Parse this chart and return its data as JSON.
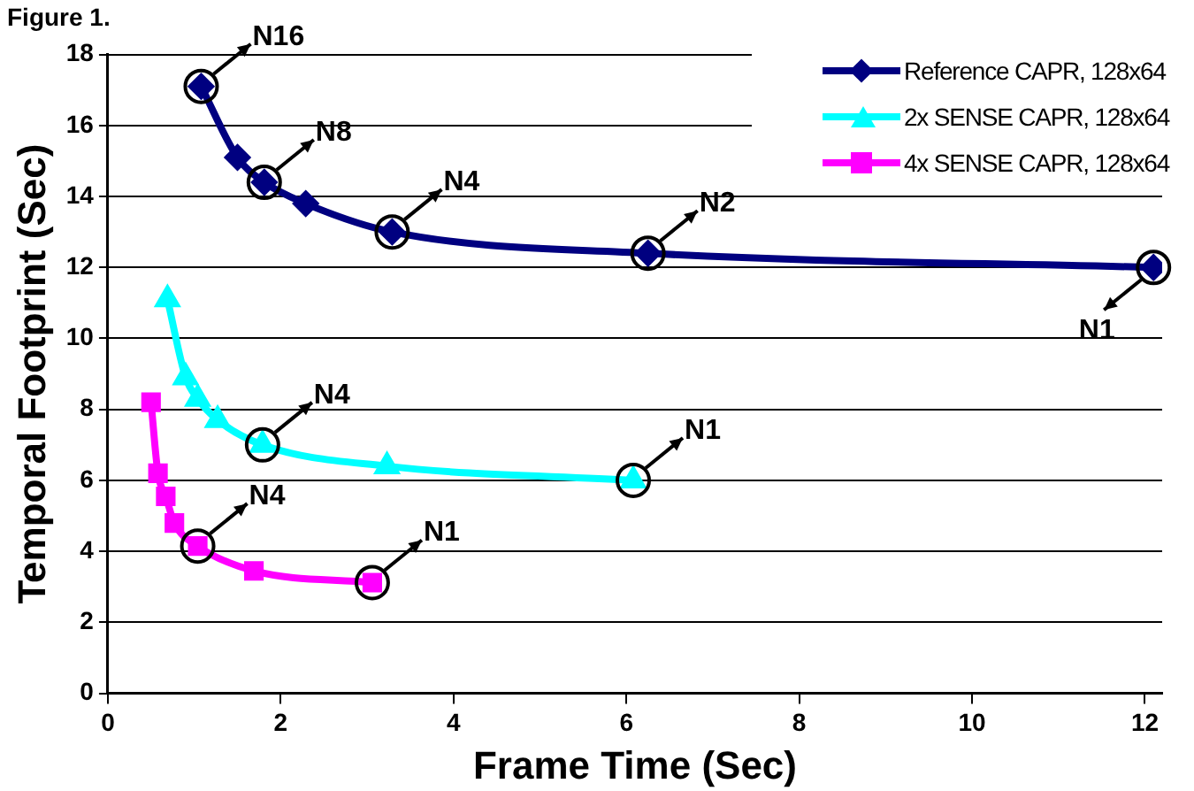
{
  "chart_data": {
    "type": "line",
    "title": "Figure 1.",
    "xlabel": "Frame Time (Sec)",
    "ylabel": "Temporal Footprint (Sec)",
    "xlim": [
      0,
      12.2
    ],
    "xticks": [
      0,
      2,
      4,
      6,
      8,
      10,
      12
    ],
    "ylim": [
      0,
      18
    ],
    "yticks": [
      0,
      2,
      4,
      6,
      8,
      10,
      12,
      14,
      16,
      18
    ],
    "grid": "y",
    "legend": "top right",
    "series": [
      {
        "name": "Reference CAPR, 128x64",
        "color": "#000080",
        "marker": "diamond",
        "x": [
          1.08,
          1.5,
          1.81,
          2.29,
          3.29,
          6.25,
          12.1
        ],
        "values": [
          17.1,
          15.1,
          14.4,
          13.8,
          13.0,
          12.4,
          12.0
        ]
      },
      {
        "name": "2x SENSE CAPR, 128x64",
        "color": "#00ffff",
        "marker": "triangle",
        "x": [
          0.69,
          0.9,
          1.04,
          1.27,
          1.79,
          3.23,
          6.08
        ],
        "values": [
          11.1,
          8.9,
          8.3,
          7.7,
          7.0,
          6.4,
          6.0
        ]
      },
      {
        "name": "4x SENSE CAPR, 128x64",
        "color": "#ff00ff",
        "marker": "square",
        "x": [
          0.5,
          0.58,
          0.67,
          0.77,
          1.04,
          1.69,
          3.06
        ],
        "values": [
          8.2,
          6.2,
          5.55,
          4.8,
          4.15,
          3.45,
          3.12
        ]
      }
    ],
    "annotations": [
      {
        "text": "N16",
        "x": 1.08,
        "y": 17.1
      },
      {
        "text": "N8",
        "x": 1.81,
        "y": 14.4
      },
      {
        "text": "N4",
        "x": 3.29,
        "y": 13.0
      },
      {
        "text": "N2",
        "x": 6.25,
        "y": 12.4
      },
      {
        "text": "N1",
        "x": 12.1,
        "y": 12.0
      },
      {
        "text": "N4",
        "x": 1.79,
        "y": 7.0
      },
      {
        "text": "N1",
        "x": 6.08,
        "y": 6.0
      },
      {
        "text": "N4",
        "x": 1.04,
        "y": 4.15
      },
      {
        "text": "N1",
        "x": 3.06,
        "y": 3.12
      }
    ]
  }
}
